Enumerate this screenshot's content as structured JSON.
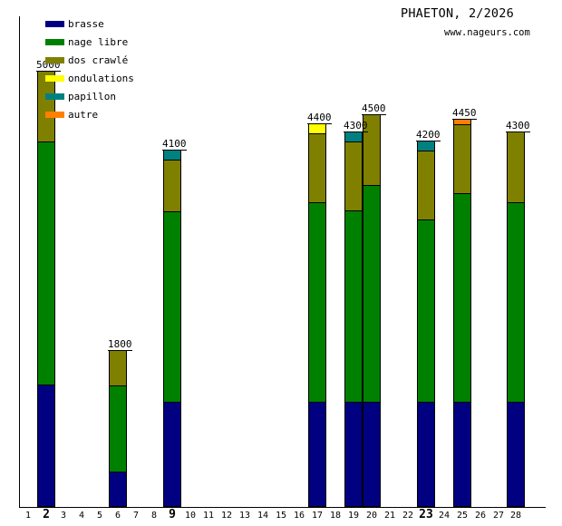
{
  "header": {
    "title": "PHAETON, 2/2026",
    "website": "www.nageurs.com"
  },
  "colors": {
    "brasse": "#000080",
    "nage_libre": "#008000",
    "dos_crawle": "#808000",
    "ondulations": "#FFFF00",
    "papillon": "#008080",
    "autre": "#FF8000",
    "axis": "#000000",
    "background": "#FFFFFF",
    "text": "#000000"
  },
  "legend": {
    "items": [
      {
        "label": "brasse",
        "color": "#000080"
      },
      {
        "label": "nage libre",
        "color": "#008000"
      },
      {
        "label": "dos crawlé",
        "color": "#808000"
      },
      {
        "label": "ondulations",
        "color": "#FFFF00"
      },
      {
        "label": "papillon",
        "color": "#008080"
      },
      {
        "label": "autre",
        "color": "#FF8000"
      }
    ]
  },
  "chart_data": {
    "type": "bar",
    "stacked": true,
    "title": "PHAETON, 2/2026",
    "subtitle": "www.nageurs.com",
    "grid": false,
    "legend_position": "top-left",
    "ylim": [
      0,
      5600
    ],
    "categories": [
      1,
      2,
      3,
      4,
      5,
      6,
      7,
      8,
      9,
      10,
      11,
      12,
      13,
      14,
      15,
      16,
      17,
      18,
      19,
      20,
      21,
      22,
      23,
      24,
      25,
      26,
      27,
      28
    ],
    "bold_categories": [
      2,
      9,
      23
    ],
    "series": [
      {
        "name": "brasse",
        "color": "#000080",
        "values": [
          0,
          1400,
          0,
          0,
          0,
          400,
          0,
          0,
          1200,
          0,
          0,
          0,
          0,
          0,
          0,
          0,
          1200,
          0,
          1200,
          1200,
          0,
          0,
          1200,
          0,
          1200,
          0,
          0,
          1200
        ]
      },
      {
        "name": "nage libre",
        "color": "#008000",
        "values": [
          0,
          2800,
          0,
          0,
          0,
          1000,
          0,
          0,
          2200,
          0,
          0,
          0,
          0,
          0,
          0,
          0,
          2300,
          0,
          2200,
          2500,
          0,
          0,
          2100,
          0,
          2400,
          0,
          0,
          2300
        ]
      },
      {
        "name": "dos crawlé",
        "color": "#808000",
        "values": [
          0,
          800,
          0,
          0,
          0,
          400,
          0,
          0,
          600,
          0,
          0,
          0,
          0,
          0,
          0,
          0,
          800,
          0,
          800,
          800,
          0,
          0,
          800,
          0,
          800,
          0,
          0,
          800
        ]
      },
      {
        "name": "ondulations",
        "color": "#FFFF00",
        "values": [
          0,
          0,
          0,
          0,
          0,
          0,
          0,
          0,
          0,
          0,
          0,
          0,
          0,
          0,
          0,
          0,
          100,
          0,
          0,
          0,
          0,
          0,
          0,
          0,
          0,
          0,
          0,
          0
        ]
      },
      {
        "name": "papillon",
        "color": "#008080",
        "values": [
          0,
          0,
          0,
          0,
          0,
          0,
          0,
          0,
          100,
          0,
          0,
          0,
          0,
          0,
          0,
          0,
          0,
          0,
          100,
          0,
          0,
          0,
          100,
          0,
          0,
          0,
          0,
          0
        ]
      },
      {
        "name": "autre",
        "color": "#FF8000",
        "values": [
          0,
          0,
          0,
          0,
          0,
          0,
          0,
          0,
          0,
          0,
          0,
          0,
          0,
          0,
          0,
          0,
          0,
          0,
          0,
          0,
          0,
          0,
          0,
          0,
          50,
          0,
          0,
          0
        ]
      }
    ],
    "bar_total_labels": {
      "2": "5000",
      "6": "1800",
      "9": "4100",
      "17": "4400",
      "19": "4300",
      "20": "4500",
      "23": "4200",
      "25": "4450",
      "28": "4300"
    }
  }
}
